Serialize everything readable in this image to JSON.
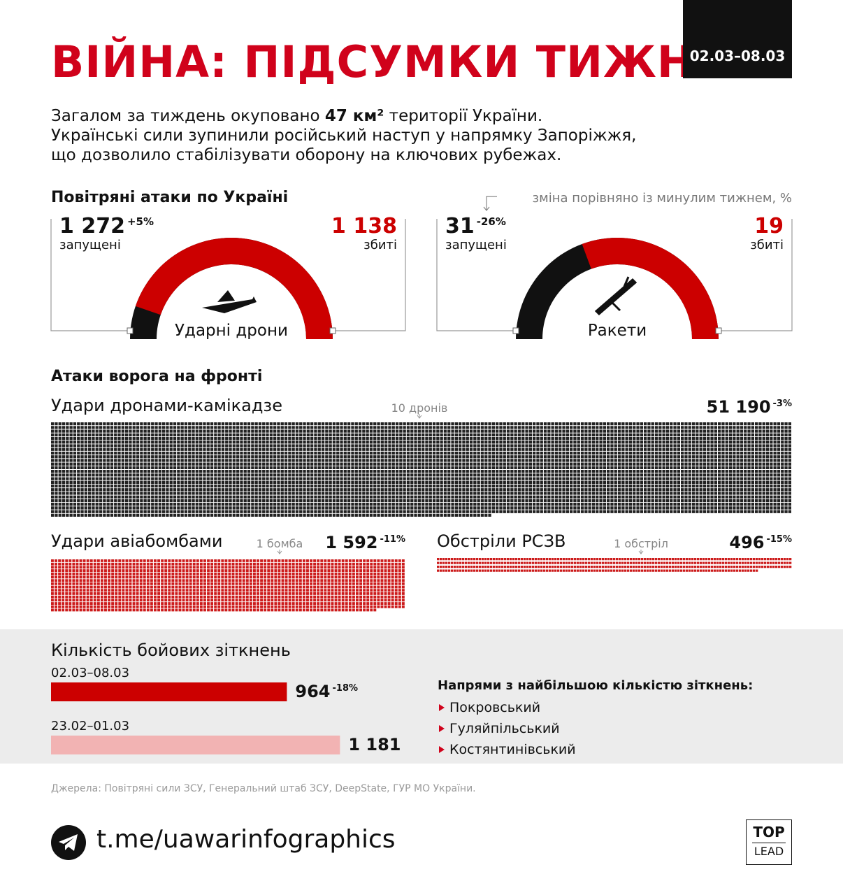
{
  "header": {
    "title": "ВІЙНА: ПІДСУМКИ ТИЖНЯ",
    "period": "02.03–08.03"
  },
  "intro": {
    "first": [
      "Загалом за тиждень окуповано ",
      "47 км²",
      " території України."
    ],
    "lines": [
      "Українські сили зупинили російський наступ у напрямку Запоріжжя,",
      "що дозволило стабілізувати оборону на ключових рубежах."
    ]
  },
  "air": {
    "title": "Повітряні атаки по Україні",
    "note": "зміна порівняно із минулим тижнем, %"
  },
  "front": {
    "title": "Атаки ворога на фронті"
  },
  "chart_data": [
    {
      "type": "gauge",
      "title": "Ударні дрони",
      "categories": [
        "запущені",
        "збиті"
      ],
      "values": [
        1272,
        1138
      ],
      "value_labels": [
        "1 272",
        "1 138"
      ],
      "change": "+5%",
      "colors": [
        "#111111",
        "#cc0000"
      ]
    },
    {
      "type": "gauge",
      "title": "Ракети",
      "categories": [
        "запущені",
        "збиті"
      ],
      "values": [
        31,
        19
      ],
      "change": "-26%",
      "colors": [
        "#111111",
        "#cc0000"
      ]
    },
    {
      "type": "waffle",
      "title": "Удари дронами-камікадзе",
      "value": 51190,
      "value_label": "51 190",
      "change": "-3%",
      "unit": {
        "value": 10,
        "label": "10 дронів"
      },
      "color": "#222222"
    },
    {
      "type": "waffle",
      "title": "Удари авіабомбами",
      "value": 1592,
      "value_label": "1 592",
      "change": "-11%",
      "unit": {
        "value": 1,
        "label": "1 бомба"
      },
      "color": "#cc1b1b"
    },
    {
      "type": "waffle",
      "title": "Обстріли РСЗВ",
      "value": 496,
      "change": "-15%",
      "unit": {
        "value": 1,
        "label": "1 обстріл"
      },
      "color": "#cc1b1b"
    },
    {
      "type": "bar",
      "title": "Кількість бойових зіткнень",
      "orientation": "horizontal",
      "categories": [
        "02.03–08.03",
        "23.02–01.03"
      ],
      "values": [
        964,
        1181
      ],
      "value_labels": [
        "964",
        "1 181"
      ],
      "change_labels": [
        "-18%",
        null
      ],
      "colors": [
        "#cc0000",
        "#f2b3b3"
      ]
    }
  ],
  "directions": {
    "title": "Напрями з найбільшою кількістю зіткнень:",
    "items": [
      "Покровський",
      "Гуляйпільський",
      "Костянтинівський"
    ]
  },
  "sources": "Джерела: Повітряні сили ЗСУ, Генеральний штаб ЗСУ, DeepState, ГУР МО України.",
  "link": "t.me/uawarinfographics",
  "logo": [
    "TOP",
    "LEAD"
  ]
}
